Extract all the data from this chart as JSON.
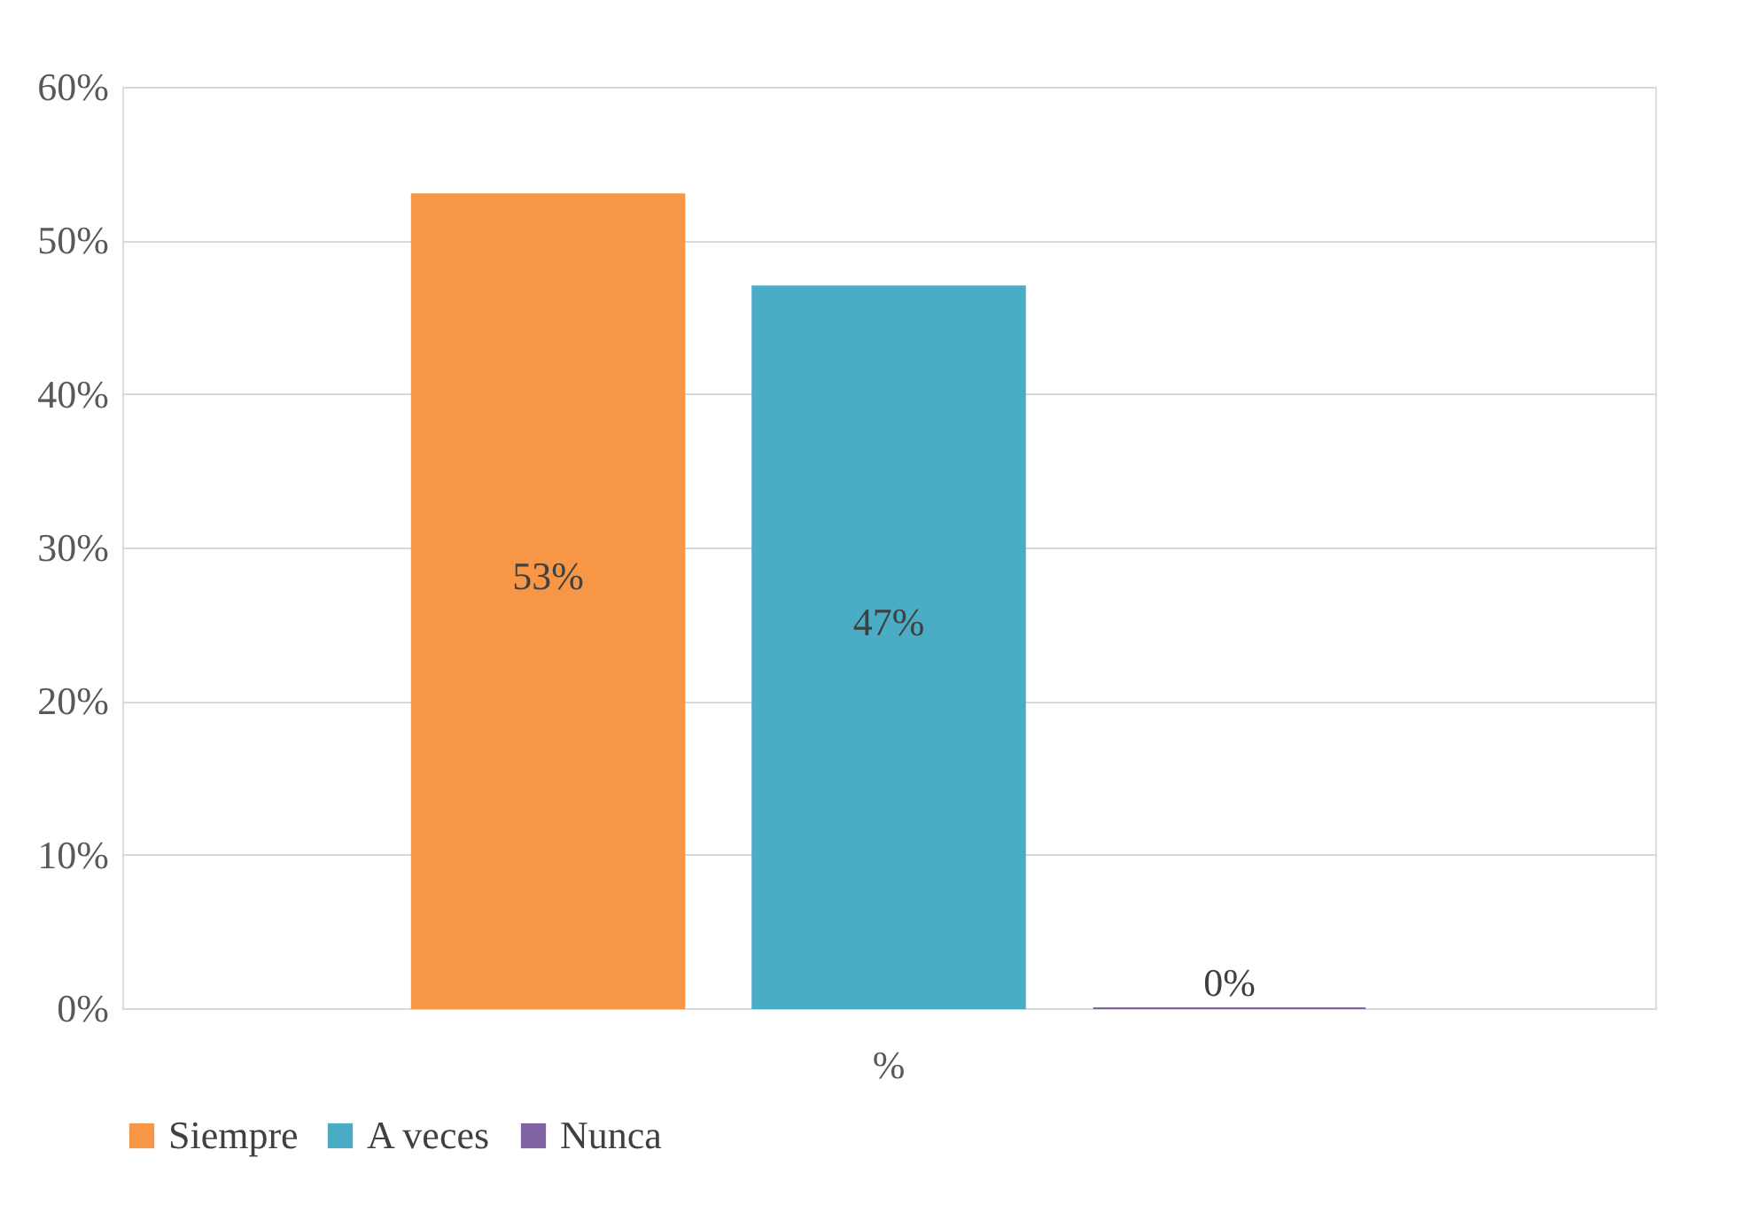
{
  "chart_data": {
    "type": "bar",
    "categories": [
      "%"
    ],
    "series": [
      {
        "name": "Siempre",
        "color": "#f79646",
        "values": [
          53
        ],
        "value_labels": [
          "53%"
        ]
      },
      {
        "name": "A veces",
        "color": "#4bacc6",
        "values": [
          47
        ],
        "value_labels": [
          "47%"
        ]
      },
      {
        "name": "Nunca",
        "color": "#8064a2",
        "values": [
          0
        ],
        "value_labels": [
          "0%"
        ]
      }
    ],
    "ylim": [
      0,
      60
    ],
    "yticks": [
      {
        "value": 0,
        "label": "0%"
      },
      {
        "value": 10,
        "label": "10%"
      },
      {
        "value": 20,
        "label": "20%"
      },
      {
        "value": 30,
        "label": "30%"
      },
      {
        "value": 40,
        "label": "40%"
      },
      {
        "value": 50,
        "label": "50%"
      },
      {
        "value": 60,
        "label": "60%"
      }
    ],
    "grid": "y",
    "legend": "bottom"
  }
}
